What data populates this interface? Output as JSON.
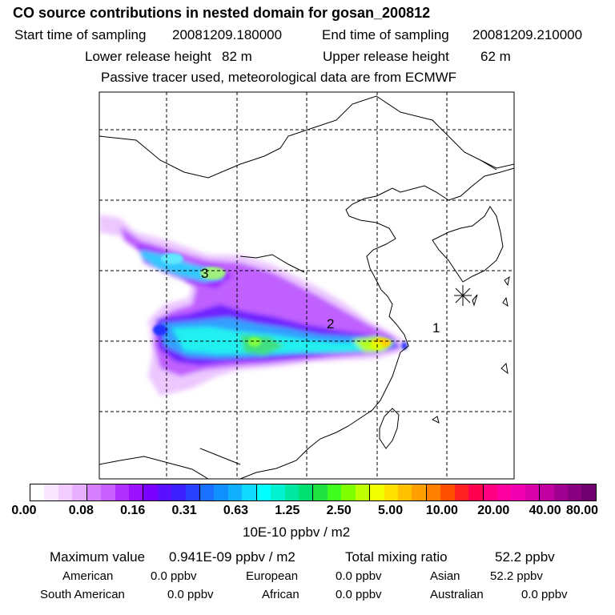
{
  "header": {
    "title": "CO  source contributions in nested domain for gosan_200812",
    "start_label": "Start time of sampling",
    "start_value": "20081209.180000",
    "end_label": "End time of sampling",
    "end_value": "20081209.210000",
    "lower_label": "Lower release height",
    "lower_value": "82 m",
    "upper_label": "Upper release height",
    "upper_value": "62 m",
    "note": "Passive tracer used, meteorological data are from ECMWF"
  },
  "map": {
    "region_labels": [
      "1",
      "2",
      "3"
    ],
    "receptor_marker": "asterisk-icon"
  },
  "colorbar": {
    "colors": [
      "#ffffff",
      "#f8e6ff",
      "#f0ccff",
      "#e6b0ff",
      "#d680ff",
      "#c860ff",
      "#b030ff",
      "#9a10ff",
      "#7a00ff",
      "#5a10ff",
      "#3c20ff",
      "#2a40ff",
      "#1a70ff",
      "#1090ff",
      "#10b0ff",
      "#10d8ff",
      "#00ffff",
      "#00f0d0",
      "#00e8a0",
      "#00e070",
      "#20e040",
      "#40ff20",
      "#80ff00",
      "#c0ff00",
      "#f0ff00",
      "#ffe000",
      "#ffc000",
      "#ffa000",
      "#ff8000",
      "#ff5000",
      "#ff2020",
      "#ff0050",
      "#ff0080",
      "#ff00a0",
      "#f000b0",
      "#d800a8",
      "#c000a0",
      "#a00090",
      "#880080",
      "#700070"
    ],
    "ticks": [
      "0.00",
      "0.08",
      "0.16",
      "0.31",
      "0.63",
      "1.25",
      "2.50",
      "5.00",
      "10.00",
      "20.00",
      "40.00",
      "80.00"
    ],
    "units": "10E-10 ppbv / m2"
  },
  "summary": {
    "max_label": "Maximum value",
    "max_value": "0.941E-09 ppbv / m2",
    "total_label": "Total mixing ratio",
    "total_value": "52.2 ppbv"
  },
  "regions": [
    {
      "name": "American",
      "value": "0.0 ppbv"
    },
    {
      "name": "European",
      "value": "0.0 ppbv"
    },
    {
      "name": "Asian",
      "value": "52.2 ppbv"
    },
    {
      "name": "South American",
      "value": "0.0 ppbv"
    },
    {
      "name": "African",
      "value": "0.0 ppbv"
    },
    {
      "name": "Australian",
      "value": "0.0 ppbv"
    }
  ]
}
